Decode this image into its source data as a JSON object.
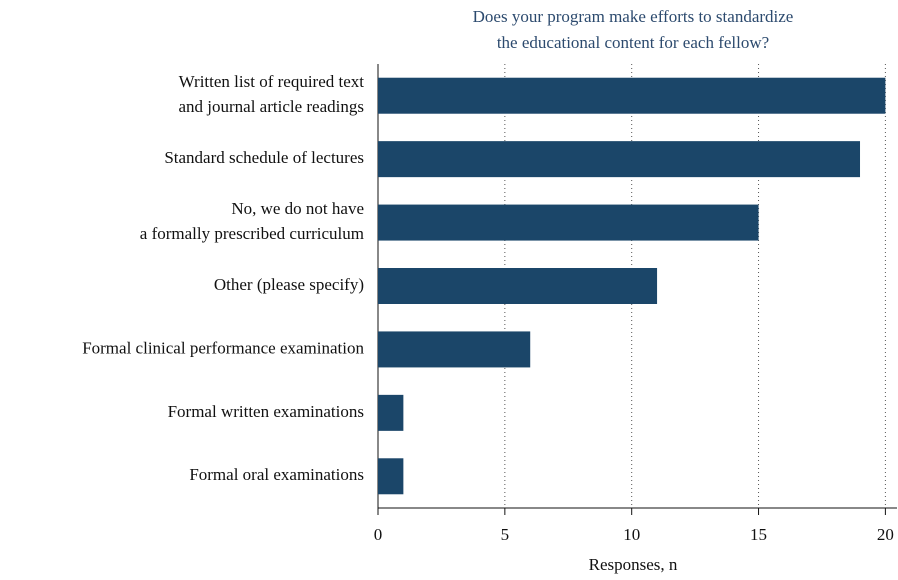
{
  "chart_data": {
    "type": "barh",
    "title": [
      "Does your program make efforts to standardize",
      "the educational content for each fellow?"
    ],
    "categories": [
      [
        "Written list of required text",
        "and journal article readings"
      ],
      [
        "Standard schedule of lectures"
      ],
      [
        "No, we do not have",
        "a formally prescribed curriculum"
      ],
      [
        "Other (please specify)"
      ],
      [
        "Formal clinical performance examination"
      ],
      [
        "Formal written examinations"
      ],
      [
        "Formal oral examinations"
      ]
    ],
    "values": [
      20,
      19,
      15,
      11,
      6,
      1,
      1
    ],
    "color": "#1b4669",
    "x_label": "Responses, n",
    "xlim": [
      0,
      20.3
    ],
    "xticks": [
      0,
      5,
      10,
      15,
      20
    ],
    "grid": true
  }
}
